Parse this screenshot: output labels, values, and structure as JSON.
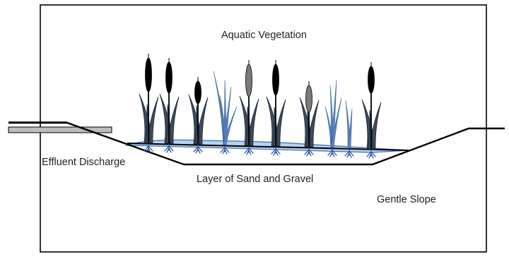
{
  "labels": {
    "vegetation": "Aquatic Vegetation",
    "effluent": "Effluent Discharge",
    "substrate": "Layer of Sand and Gravel",
    "slope": "Gentle Slope"
  },
  "colors": {
    "frame": "#000000",
    "water_fill": "#b8d2ee",
    "water_edge": "#3e6fb0",
    "cattail_dark": "#000000",
    "cattail_grey": "#7a7a7a",
    "leaf_fill": "#3f4c5e",
    "leaf_edge": "#1b2433",
    "blade_fill": "#5c86c2",
    "root": "#1f4d9a",
    "pipe_fill": "#bdbdbd"
  },
  "plants": {
    "cattails": [
      "dark",
      "dark",
      "dark",
      "grey",
      "dark",
      "grey",
      "dark"
    ],
    "grass_clumps": 3
  }
}
